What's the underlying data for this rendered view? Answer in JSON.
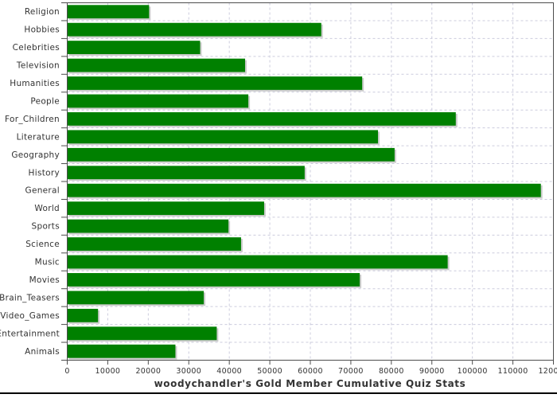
{
  "page": {
    "background_color": "#ffffff",
    "bottom_rule_color": "#000000"
  },
  "chart_data": {
    "type": "bar",
    "orientation": "horizontal",
    "title": "woodychandler's Gold Member Cumulative Quiz Stats",
    "xlabel": "",
    "ylabel": "",
    "legend": "none",
    "grid": "dashed-both-axes",
    "xlim": [
      0,
      120000
    ],
    "x_ticks": [
      0,
      10000,
      20000,
      30000,
      40000,
      50000,
      60000,
      70000,
      80000,
      90000,
      100000,
      110000,
      120000
    ],
    "categories": [
      "Religion",
      "Hobbies",
      "Celebrities",
      "Television",
      "Humanities",
      "People",
      "For_Children",
      "Literature",
      "Geography",
      "History",
      "General",
      "World",
      "Sports",
      "Science",
      "Music",
      "Movies",
      "Brain_Teasers",
      "Video_Games",
      "Entertainment",
      "Animals"
    ],
    "values": [
      20200,
      62700,
      32800,
      43900,
      72800,
      44700,
      95900,
      76700,
      80800,
      58600,
      116900,
      48600,
      39800,
      42900,
      93900,
      72200,
      33700,
      7600,
      36900,
      26700
    ],
    "colors": {
      "bar_fill": "#008000",
      "bar_shadow": "#cccccc",
      "gridline": "#ccccdd",
      "plot_outline": "#4d4d4d",
      "axis_tick": "#4d4d4d",
      "tick_label_text": "#333333",
      "title_text": "#333333"
    }
  }
}
